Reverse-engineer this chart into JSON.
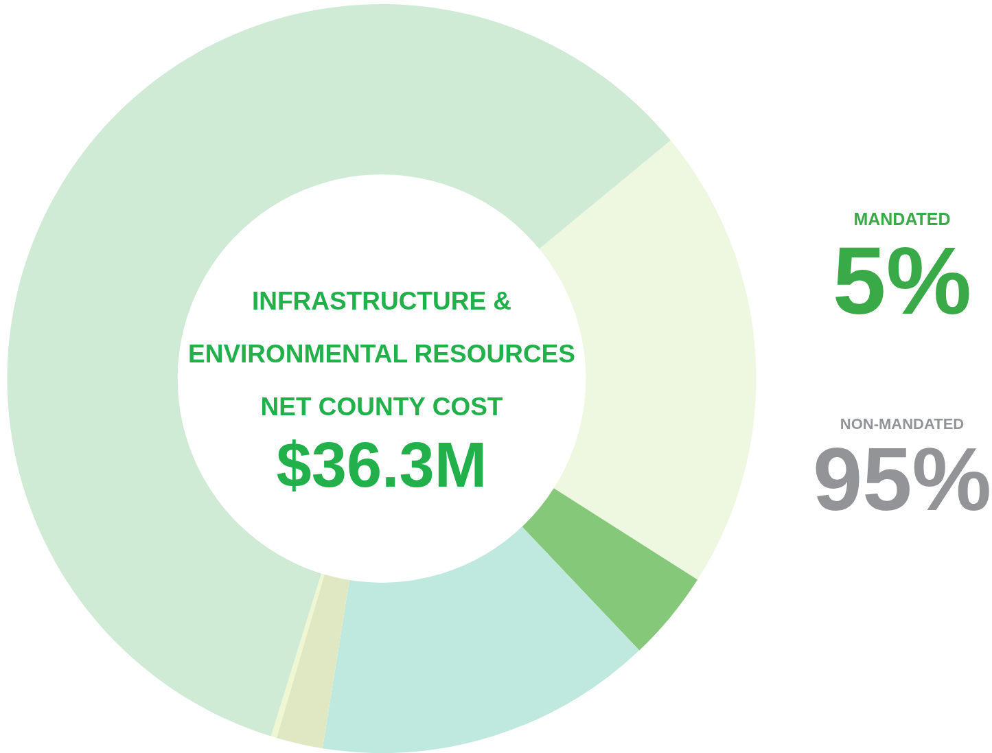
{
  "chart_data": {
    "type": "donut",
    "title": "INFRASTRUCTURE & ENVIRONMENTAL RESOURCES NET COUNTY COST",
    "subtitle": "$36.3M",
    "categories": [
      null,
      null,
      null,
      null,
      null,
      null
    ],
    "values": [
      20.0,
      3.9,
      14.6,
      2.0,
      0.25,
      59.25
    ],
    "colors": [
      "#eef7df",
      "#86c87a",
      "#bfe8df",
      "#dfe8c2",
      "#eef7d2",
      "#cfead5"
    ],
    "annotations": [
      "MANDATED",
      "5%",
      "NON-MANDATED",
      "95%"
    ],
    "legend": false
  }
}
